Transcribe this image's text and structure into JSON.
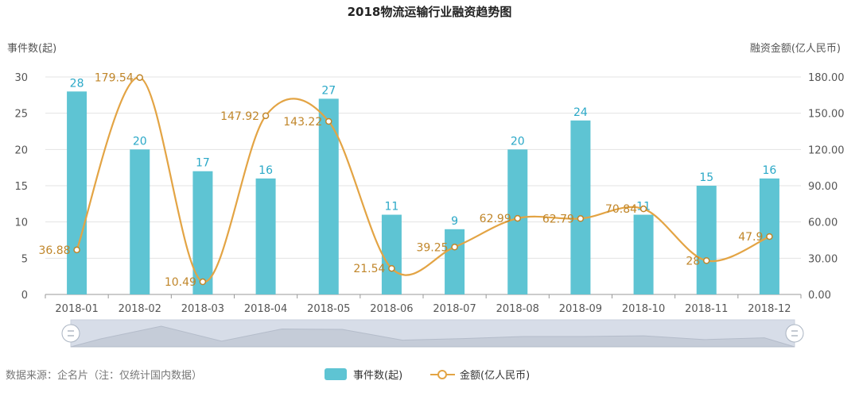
{
  "chart_data": {
    "title": "2018物流运输行业融资趋势图",
    "type": "bar+line",
    "categories": [
      "2018-01",
      "2018-02",
      "2018-03",
      "2018-04",
      "2018-05",
      "2018-06",
      "2018-07",
      "2018-08",
      "2018-09",
      "2018-10",
      "2018-11",
      "2018-12"
    ],
    "series": [
      {
        "name": "事件数(起)",
        "type": "bar",
        "axis": "left",
        "values": [
          28,
          20,
          17,
          16,
          27,
          11,
          9,
          20,
          24,
          11,
          15,
          16
        ],
        "labels": [
          "28",
          "20",
          "17",
          "16",
          "27",
          "11",
          "9",
          "20",
          "24",
          "11",
          "15",
          "16"
        ],
        "color": "#5ec4d3"
      },
      {
        "name": "金额(亿人民币)",
        "type": "line",
        "axis": "right",
        "values": [
          36.88,
          179.54,
          10.49,
          147.92,
          143.22,
          21.54,
          39.25,
          62.99,
          62.79,
          70.84,
          28,
          47.9
        ],
        "labels": [
          "36.88",
          "179.54",
          "10.49",
          "147.92",
          "143.22",
          "21.54",
          "39.25",
          "62.99",
          "62.79",
          "70.84",
          "28",
          "47.9"
        ],
        "color": "#e3a444"
      }
    ],
    "y_left": {
      "label": "事件数(起)",
      "ylim": [
        0,
        30
      ],
      "ticks": [
        "0",
        "5",
        "10",
        "15",
        "20",
        "25",
        "30"
      ]
    },
    "y_right": {
      "label": "融资金额(亿人民币)",
      "ylim": [
        0,
        180
      ],
      "ticks": [
        "0.00",
        "30.00",
        "60.00",
        "90.00",
        "120.00",
        "150.00",
        "180.00"
      ]
    },
    "grid": true,
    "legend_position": "bottom-center",
    "source_note": "数据来源：企名片（注：仅统计国内数据）"
  }
}
